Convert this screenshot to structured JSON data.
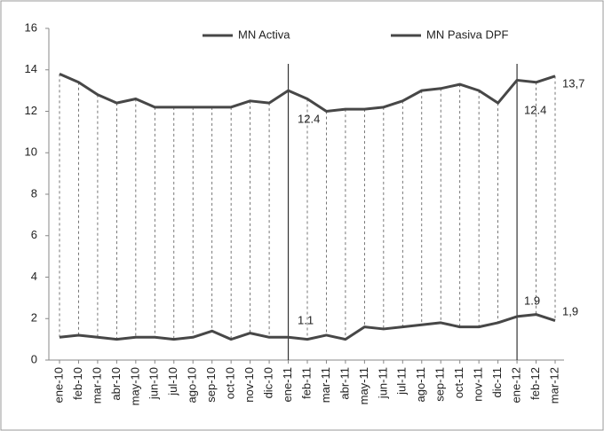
{
  "chart_data": {
    "type": "line",
    "categories": [
      "ene-10",
      "feb-10",
      "mar-10",
      "abr-10",
      "may-10",
      "jun-10",
      "jul-10",
      "ago-10",
      "sep-10",
      "oct-10",
      "nov-10",
      "dic-10",
      "ene-11",
      "feb-11",
      "mar-11",
      "abr-11",
      "may-11",
      "jun-11",
      "jul-11",
      "ago-11",
      "sep-11",
      "oct-11",
      "nov-11",
      "dic-11",
      "ene-12",
      "feb-12",
      "mar-12"
    ],
    "series": [
      {
        "name": "MN Activa",
        "color": "#474747",
        "values": [
          13.8,
          13.4,
          12.8,
          12.4,
          12.6,
          12.2,
          12.2,
          12.2,
          12.2,
          12.2,
          12.5,
          12.4,
          13.0,
          12.6,
          12.0,
          12.1,
          12.1,
          12.2,
          12.5,
          13.0,
          13.1,
          13.3,
          13.0,
          12.4,
          13.5,
          13.4,
          13.7
        ]
      },
      {
        "name": "MN Pasiva DPF",
        "color": "#474747",
        "values": [
          1.1,
          1.2,
          1.1,
          1.0,
          1.1,
          1.1,
          1.0,
          1.1,
          1.4,
          1.0,
          1.3,
          1.1,
          1.1,
          1.0,
          1.2,
          1.0,
          1.6,
          1.5,
          1.6,
          1.7,
          1.8,
          1.6,
          1.6,
          1.8,
          2.1,
          2.2,
          1.9
        ]
      }
    ],
    "annotations": [
      "12.4",
      "1.1",
      "12.4",
      "1.9",
      "13,7",
      "1,9"
    ],
    "ylim": [
      0,
      16
    ],
    "yticks": [
      0,
      2,
      4,
      6,
      8,
      10,
      12,
      14,
      16
    ],
    "grid": false
  }
}
